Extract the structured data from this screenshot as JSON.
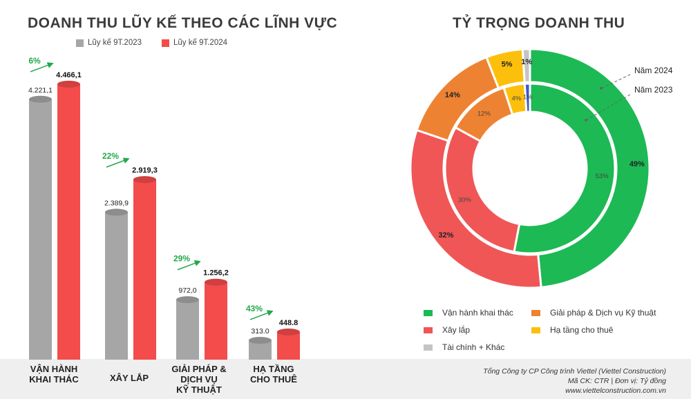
{
  "left_title": "DOANH THU LŨY KẾ THEO CÁC LĨNH VỰC",
  "right_title": "TỶ TRỌNG DOANH THU",
  "chart_data": [
    {
      "type": "bar",
      "title": "DOANH THU LŨY KẾ THEO CÁC LĨNH VỰC",
      "categories": [
        "VẬN HÀNH KHAI THÁC",
        "XÂY LẮP",
        "GIẢI PHÁP & DỊCH VỤ KỸ THUẬT",
        "HẠ TẦNG CHO THUÊ"
      ],
      "series": [
        {
          "name": "Lũy kế 9T.2023",
          "color": "#a6a6a6",
          "values": [
            4221.1,
            2389.9,
            972.0,
            313.0
          ],
          "labels": [
            "4.221,1",
            "2.389,9",
            "972,0",
            "313.0"
          ]
        },
        {
          "name": "Lũy kế 9T.2024",
          "color": "#f44b4b",
          "values": [
            4466.1,
            2919.3,
            1256.2,
            448.8
          ],
          "labels": [
            "4.466,1",
            "2.919,3",
            "1.256,2",
            "448.8"
          ]
        }
      ],
      "growth_labels": [
        "6%",
        "22%",
        "29%",
        "43%"
      ],
      "ylim": [
        0,
        4700
      ],
      "grid": false,
      "legend": "top"
    },
    {
      "type": "pie",
      "title": "TỶ TRỌNG DOANH THU",
      "style": "double-donut",
      "categories": [
        "Vận hành khai thác",
        "Xây lắp",
        "Giải pháp & Dịch vụ Kỹ thuật",
        "Hạ tầng cho thuê",
        "Tài chính + Khác"
      ],
      "colors": [
        "#1db954",
        "#f05656",
        "#ee8233",
        "#fcc00c",
        "#c4c4c4"
      ],
      "series": [
        {
          "name": "Năm 2024",
          "ring": "outer",
          "values": [
            49,
            32,
            14,
            5,
            1
          ],
          "labels": [
            "49%",
            "32%",
            "14%",
            "5%",
            "1%"
          ]
        },
        {
          "name": "Năm 2023",
          "ring": "inner",
          "values": [
            53,
            30,
            12,
            4,
            1
          ],
          "labels": [
            "53%",
            "30%",
            "12%",
            "4%",
            "1%"
          ]
        }
      ],
      "legend": "bottom"
    }
  ],
  "category_labels": [
    [
      "VẬN HÀNH",
      "KHAI THÁC"
    ],
    [
      "XÂY LẮP"
    ],
    [
      "GIẢI PHÁP &",
      "DỊCH VỤ",
      "KỸ THUẬT"
    ],
    [
      "HẠ TẦNG",
      "CHO THUÊ"
    ]
  ],
  "inner_last_slice_color": "#3a5bc7",
  "credits": {
    "line1": "Tổng Công ty CP Công trình Viettel (Viettel Construction)",
    "line2": "Mã CK: CTR  |  Đơn vị: Tỷ đồng",
    "line3": "www.viettelconstruction.com.vn"
  }
}
